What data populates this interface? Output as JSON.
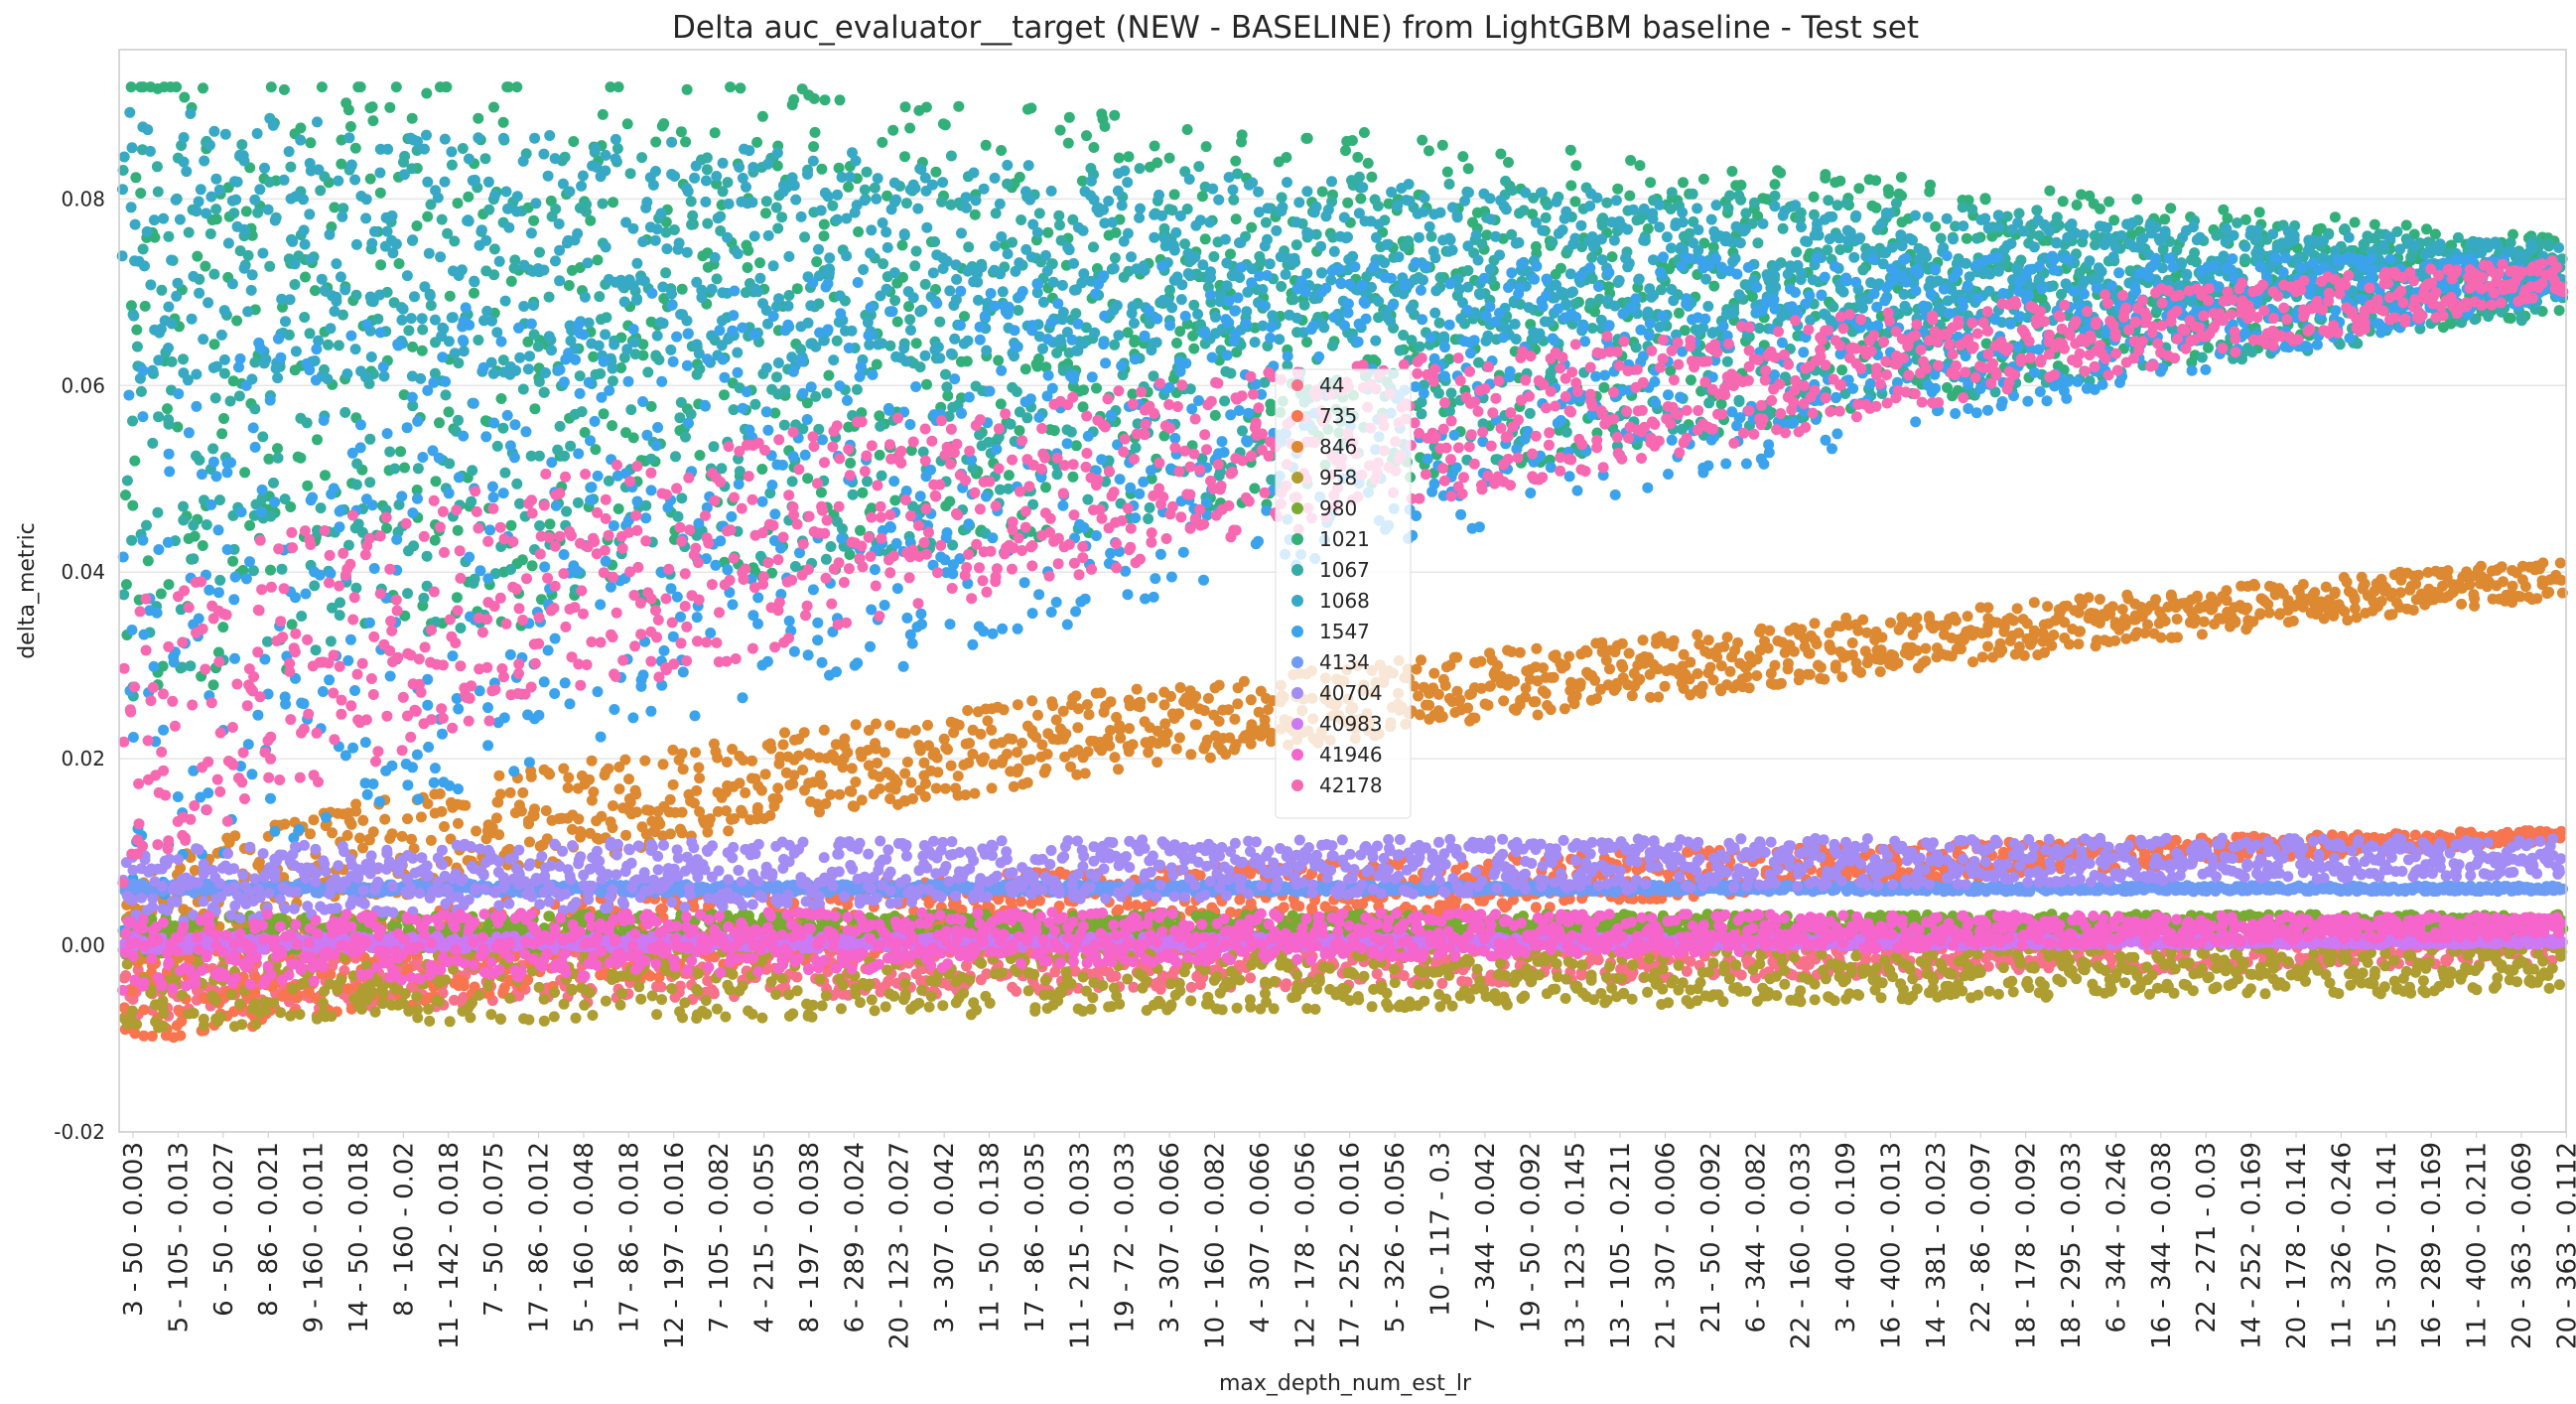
{
  "chart_data": {
    "type": "scatter",
    "title": "Delta auc_evaluator__target (NEW - BASELINE) from LightGBM baseline - Test set",
    "xlabel": "max_depth_num_est_lr",
    "ylabel": "delta_metric",
    "ylim": [
      -0.02,
      0.096
    ],
    "yticks": [
      "-0.02",
      "0.00",
      "0.02",
      "0.04",
      "0.06",
      "0.08"
    ],
    "grid": "horizontal",
    "legend_position": "center",
    "x_tick_labels": [
      "3 - 50 - 0.003",
      "5 - 105 - 0.013",
      "6 - 50 - 0.027",
      "8 - 86 - 0.021",
      "9 - 160 - 0.011",
      "14 - 50 - 0.018",
      "8 - 160 - 0.02",
      "11 - 142 - 0.018",
      "7 - 50 - 0.075",
      "17 - 86 - 0.012",
      "5 - 160 - 0.048",
      "17 - 86 - 0.018",
      "12 - 197 - 0.016",
      "7 - 105 - 0.082",
      "4 - 215 - 0.055",
      "8 - 197 - 0.038",
      "6 - 289 - 0.024",
      "20 - 123 - 0.027",
      "3 - 307 - 0.042",
      "11 - 50 - 0.138",
      "17 - 86 - 0.035",
      "11 - 215 - 0.033",
      "19 - 72 - 0.033",
      "3 - 307 - 0.066",
      "10 - 160 - 0.082",
      "4 - 307 - 0.066",
      "12 - 178 - 0.056",
      "17 - 252 - 0.016",
      "5 - 326 - 0.056",
      "10 - 117 - 0.3",
      "7 - 344 - 0.042",
      "19 - 50 - 0.092",
      "13 - 123 - 0.145",
      "13 - 105 - 0.211",
      "21 - 307 - 0.006",
      "21 - 50 - 0.092",
      "6 - 344 - 0.082",
      "22 - 160 - 0.033",
      "3 - 400 - 0.109",
      "16 - 400 - 0.013",
      "14 - 381 - 0.023",
      "22 - 86 - 0.097",
      "18 - 178 - 0.092",
      "18 - 295 - 0.033",
      "6 - 344 - 0.246",
      "16 - 344 - 0.038",
      "22 - 271 - 0.03",
      "14 - 252 - 0.169",
      "20 - 178 - 0.141",
      "11 - 326 - 0.246",
      "15 - 307 - 0.141",
      "16 - 289 - 0.169",
      "11 - 400 - 0.211",
      "20 - 363 - 0.069",
      "20 - 363 - 0.112"
    ],
    "series": [
      {
        "name": "44",
        "color": "#f77189",
        "base_start": -0.004,
        "base_end": 0.0,
        "band_start": 0.004,
        "band_end": 0.002
      },
      {
        "name": "735",
        "color": "#f7754f",
        "base_start": -0.006,
        "base_end": 0.0118,
        "band_start": 0.006,
        "band_end": 0.0006
      },
      {
        "name": "846",
        "color": "#dc8932",
        "base_start": 0.0,
        "base_end": 0.0393,
        "band_start": 0.006,
        "band_end": 0.002
      },
      {
        "name": "958",
        "color": "#ae9d31",
        "base_start": -0.003,
        "base_end": -0.002,
        "band_start": 0.006,
        "band_end": 0.003
      },
      {
        "name": "980",
        "color": "#77ab31",
        "base_start": 0.001,
        "base_end": 0.0025,
        "band_start": 0.002,
        "band_end": 0.0008
      },
      {
        "name": "1021",
        "color": "#33b07a",
        "base_start": 0.06,
        "base_end": 0.072,
        "band_start": 0.035,
        "band_end": 0.004
      },
      {
        "name": "1067",
        "color": "#36ada4",
        "base_start": 0.055,
        "base_end": 0.0715,
        "band_start": 0.03,
        "band_end": 0.004
      },
      {
        "name": "1068",
        "color": "#38a9c5",
        "base_start": 0.075,
        "base_end": 0.072,
        "band_start": 0.015,
        "band_end": 0.003
      },
      {
        "name": "1547",
        "color": "#3ba3ec",
        "base_start": 0.03,
        "base_end": 0.0715,
        "band_start": 0.03,
        "band_end": 0.002
      },
      {
        "name": "4134",
        "color": "#6e9bf4",
        "base_start": 0.0061,
        "base_end": 0.0061,
        "band_start": 0.0005,
        "band_end": 0.0003
      },
      {
        "name": "40704",
        "color": "#a38cf4",
        "base_start": 0.0062,
        "base_end": 0.0095,
        "band_start": 0.004,
        "band_end": 0.002
      },
      {
        "name": "40983",
        "color": "#cc79f4",
        "base_start": 0.0002,
        "base_end": 0.0004,
        "band_start": 0.0008,
        "band_end": 0.0003
      },
      {
        "name": "41946",
        "color": "#f565cc",
        "base_start": -0.001,
        "base_end": 0.002,
        "band_start": 0.004,
        "band_end": 0.001
      },
      {
        "name": "42178",
        "color": "#f668b0",
        "base_start": 0.02,
        "base_end": 0.0715,
        "band_start": 0.015,
        "band_end": 0.002
      }
    ]
  }
}
